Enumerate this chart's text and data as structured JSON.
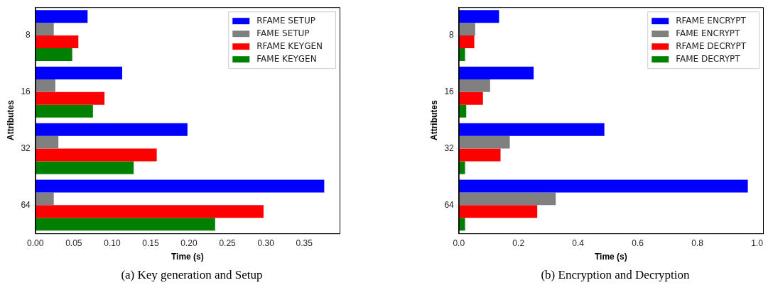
{
  "chart_data": [
    {
      "type": "bar",
      "orientation": "horizontal",
      "xlabel": "Time (s)",
      "ylabel": "Attributes",
      "categories": [
        "8",
        "16",
        "32",
        "64"
      ],
      "series": [
        {
          "name": "RFAME SETUP",
          "color": "#0000ff",
          "values": [
            0.068,
            0.113,
            0.198,
            0.376
          ]
        },
        {
          "name": "FAME SETUP",
          "color": "#808080",
          "values": [
            0.024,
            0.026,
            0.03,
            0.024
          ]
        },
        {
          "name": "RFAME KEYGEN",
          "color": "#ff0000",
          "values": [
            0.056,
            0.09,
            0.158,
            0.297
          ]
        },
        {
          "name": "FAME KEYGEN",
          "color": "#008000",
          "values": [
            0.048,
            0.075,
            0.128,
            0.234
          ]
        }
      ],
      "xlim": [
        0,
        0.396
      ],
      "xticks": [
        {
          "value": 0,
          "label": "0.00"
        },
        {
          "value": 0.05,
          "label": "0.05"
        },
        {
          "value": 0.1,
          "label": "0.10"
        },
        {
          "value": 0.15,
          "label": "0.15"
        },
        {
          "value": 0.2,
          "label": "0.20"
        },
        {
          "value": 0.25,
          "label": "0.25"
        },
        {
          "value": 0.3,
          "label": "0.30"
        },
        {
          "value": 0.35,
          "label": "0.35"
        }
      ],
      "legend": "top right",
      "grid": false,
      "annotations": [
        "(a) Key generation and Setup"
      ]
    },
    {
      "type": "bar",
      "orientation": "horizontal",
      "xlabel": "Time (s)",
      "ylabel": "Attributes",
      "categories": [
        "8",
        "16",
        "32",
        "64"
      ],
      "series": [
        {
          "name": "RFAME ENCRYPT",
          "color": "#0000ff",
          "values": [
            0.135,
            0.251,
            0.488,
            0.969
          ]
        },
        {
          "name": "FAME ENCRYPT",
          "color": "#808080",
          "values": [
            0.055,
            0.105,
            0.171,
            0.325
          ]
        },
        {
          "name": "RFAME DECRYPT",
          "color": "#ff0000",
          "values": [
            0.052,
            0.081,
            0.14,
            0.263
          ]
        },
        {
          "name": "FAME DECRYPT",
          "color": "#008000",
          "values": [
            0.021,
            0.025,
            0.021,
            0.021
          ]
        }
      ],
      "xlim": [
        0,
        1.02
      ],
      "xticks": [
        {
          "value": 0,
          "label": "0.0"
        },
        {
          "value": 0.2,
          "label": "0.2"
        },
        {
          "value": 0.4,
          "label": "0.4"
        },
        {
          "value": 0.6,
          "label": "0.6"
        },
        {
          "value": 0.8,
          "label": "0.8"
        },
        {
          "value": 1,
          "label": "1.0"
        }
      ],
      "legend": "top right",
      "grid": false,
      "annotations": [
        "(b) Encryption and Decryption"
      ]
    }
  ]
}
